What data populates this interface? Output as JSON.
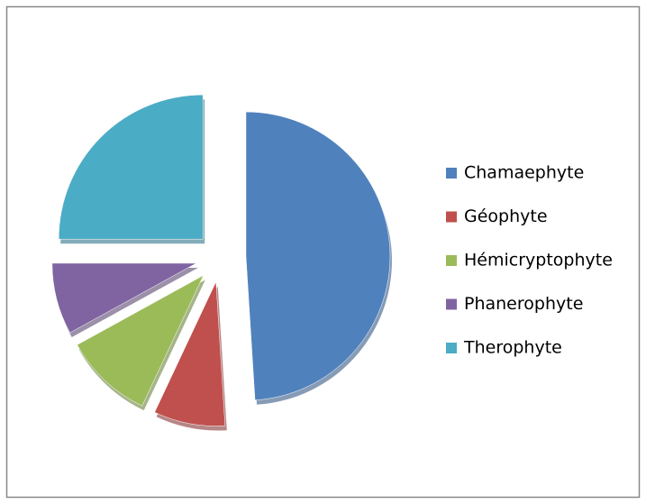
{
  "chart_data": {
    "type": "pie",
    "categories": [
      "Chamaephyte",
      "Géophyte",
      "Hémicryptophyte",
      "Phanerophyte",
      "Therophyte"
    ],
    "values": [
      49,
      8,
      10,
      8,
      25
    ],
    "colors": [
      "#4f81bd",
      "#c0504d",
      "#9bbb59",
      "#8064a2",
      "#4bacc6"
    ],
    "exploded": true,
    "legend": "right"
  }
}
